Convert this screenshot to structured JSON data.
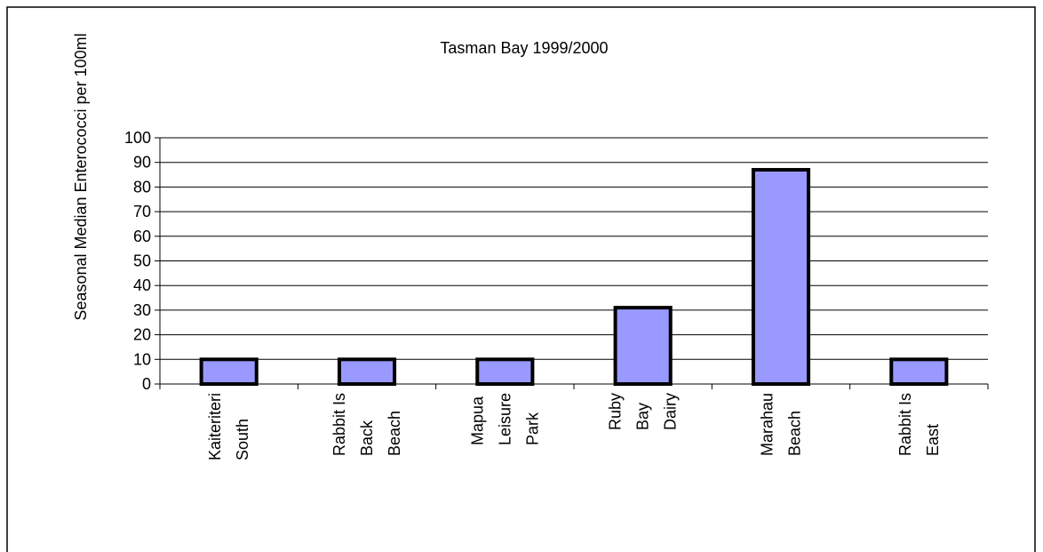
{
  "chart_data": {
    "type": "bar",
    "title": "Tasman Bay 1999/2000",
    "y_label": "Seasonal Median Enterococci per 100ml",
    "categories": [
      "Kaiteriteri\nSouth",
      "Rabbit Is\nBack\nBeach",
      "Mapua\nLeisure\nPark",
      "Ruby\nBay\nDairy",
      "Marahau\nBeach",
      "Rabbit Is\nEast"
    ],
    "values": [
      10,
      10,
      10,
      31,
      87,
      10
    ],
    "color": "#9999ff",
    "ylim": [
      0,
      100
    ],
    "yticks": [
      0,
      10,
      20,
      30,
      40,
      50,
      60,
      70,
      80,
      90,
      100
    ],
    "grid": true
  }
}
